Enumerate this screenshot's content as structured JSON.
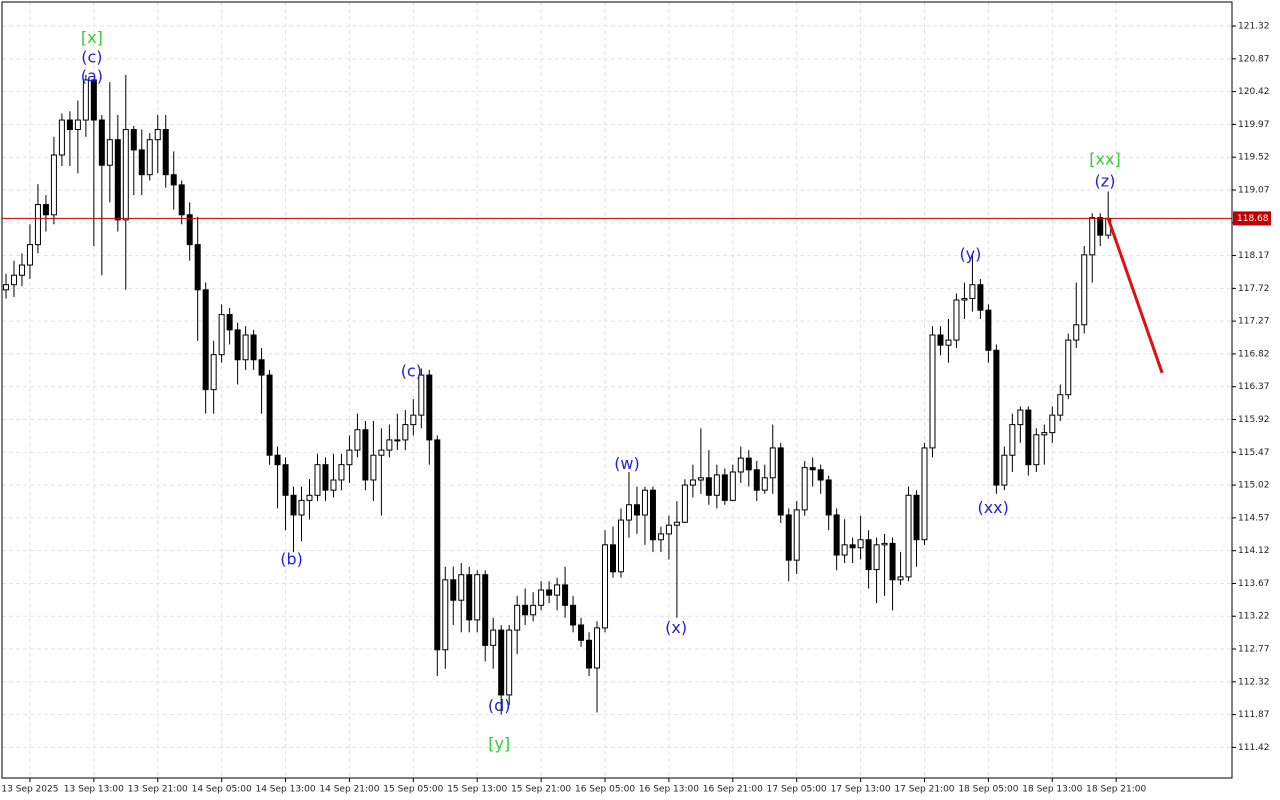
{
  "chart_data": {
    "type": "candlestick",
    "open": [
      117.7,
      117.77,
      117.9,
      118.04,
      118.32,
      118.87,
      118.73,
      119.55,
      120.03,
      119.9,
      120.03,
      120.58,
      120.03,
      119.41,
      119.76,
      118.66,
      119.9,
      119.62,
      119.28,
      119.76,
      119.9,
      119.28,
      119.14,
      118.73,
      118.32,
      117.7,
      116.33,
      116.81,
      117.36,
      117.15,
      116.74,
      117.08,
      116.74,
      116.53,
      115.43,
      115.3,
      114.88,
      114.61,
      114.81,
      114.88,
      115.3,
      114.95,
      115.09,
      115.3,
      115.5,
      115.78,
      115.09,
      115.43,
      115.5,
      115.64,
      115.64,
      115.85,
      115.98,
      116.53,
      115.64,
      112.76,
      113.72,
      113.44,
      113.79,
      113.17,
      113.79,
      112.82,
      113.03,
      112.14,
      113.03,
      113.37,
      113.24,
      113.37,
      113.58,
      113.51,
      113.65,
      113.37,
      113.1,
      112.89,
      112.51,
      113.06,
      114.2,
      113.83,
      114.54,
      114.75,
      114.61,
      114.95,
      114.27,
      114.35,
      114.47,
      114.51,
      115.02,
      115.09,
      115.12,
      114.88,
      115.16,
      114.81,
      115.2,
      115.39,
      115.23,
      114.95,
      115.12,
      115.53,
      114.61,
      113.99,
      114.68,
      115.26,
      115.23,
      115.09,
      114.61,
      114.06,
      114.2,
      114.16,
      114.27,
      113.86,
      114.2,
      114.22,
      113.72,
      113.76,
      114.88,
      114.27,
      115.53,
      117.08,
      116.94,
      117.01,
      117.56,
      117.58,
      117.77,
      117.42,
      116.87,
      115.02,
      115.43,
      115.85,
      116.05,
      115.3,
      115.71,
      115.74,
      115.98,
      116.26,
      117.01,
      117.22,
      118.18,
      118.69,
      118.45
    ],
    "high": [
      117.92,
      118.1,
      118.2,
      118.6,
      119.15,
      119.0,
      119.8,
      120.12,
      120.15,
      120.3,
      120.65,
      120.6,
      120.1,
      120.55,
      120.1,
      120.65,
      119.95,
      119.9,
      119.85,
      120.1,
      120.1,
      119.6,
      119.2,
      118.9,
      118.7,
      117.8,
      117.0,
      117.5,
      117.45,
      117.25,
      117.2,
      117.15,
      116.9,
      116.6,
      115.55,
      115.4,
      115.0,
      115.0,
      115.1,
      115.45,
      115.4,
      115.45,
      115.45,
      115.7,
      116.0,
      115.9,
      115.9,
      115.8,
      115.85,
      116.0,
      116.05,
      116.2,
      116.62,
      116.6,
      115.7,
      113.9,
      113.9,
      113.95,
      113.9,
      113.85,
      113.85,
      113.2,
      113.1,
      113.1,
      113.5,
      113.6,
      113.55,
      113.7,
      113.7,
      113.75,
      113.9,
      113.5,
      113.2,
      113.0,
      113.15,
      114.4,
      114.45,
      114.7,
      115.2,
      115.0,
      115.0,
      115.0,
      114.45,
      114.6,
      114.8,
      115.1,
      115.3,
      115.8,
      115.5,
      115.3,
      115.25,
      115.3,
      115.55,
      115.5,
      115.35,
      115.3,
      115.85,
      115.6,
      114.7,
      114.8,
      115.35,
      115.4,
      115.3,
      115.15,
      114.7,
      114.55,
      114.3,
      114.6,
      114.4,
      114.3,
      114.35,
      114.3,
      114.1,
      115.0,
      114.95,
      115.6,
      117.2,
      117.2,
      117.3,
      117.65,
      117.8,
      118.2,
      117.85,
      117.5,
      116.95,
      115.55,
      116.0,
      116.1,
      116.1,
      115.8,
      115.85,
      116.1,
      116.4,
      117.1,
      117.8,
      118.3,
      118.75,
      118.75,
      119.05
    ],
    "low": [
      117.58,
      117.6,
      117.75,
      117.85,
      118.2,
      118.5,
      118.6,
      119.4,
      119.4,
      119.3,
      119.8,
      118.3,
      117.9,
      118.9,
      118.5,
      117.7,
      119.0,
      119.0,
      119.2,
      119.3,
      119.1,
      118.8,
      118.6,
      118.1,
      117.0,
      116.0,
      116.0,
      116.7,
      116.95,
      116.4,
      116.6,
      116.6,
      116.0,
      115.3,
      114.7,
      114.4,
      114.1,
      114.25,
      114.55,
      114.8,
      114.8,
      114.85,
      114.95,
      115.05,
      115.4,
      114.95,
      114.8,
      114.6,
      115.4,
      115.5,
      115.5,
      115.7,
      115.8,
      115.3,
      112.4,
      112.5,
      113.1,
      113.0,
      113.0,
      113.0,
      112.6,
      112.5,
      111.87,
      112.0,
      112.7,
      113.1,
      113.15,
      113.3,
      113.4,
      113.3,
      113.2,
      113.0,
      112.8,
      112.4,
      111.9,
      113.0,
      113.75,
      113.75,
      114.3,
      114.35,
      114.2,
      114.1,
      114.1,
      114.0,
      113.2,
      114.5,
      114.85,
      114.9,
      114.75,
      114.7,
      114.75,
      114.8,
      115.05,
      115.0,
      114.8,
      114.9,
      114.9,
      114.5,
      113.7,
      113.8,
      114.6,
      115.0,
      114.9,
      114.4,
      113.85,
      113.95,
      113.95,
      114.0,
      113.6,
      113.4,
      113.5,
      113.3,
      113.65,
      113.7,
      113.9,
      114.2,
      115.4,
      116.8,
      116.7,
      116.9,
      117.3,
      117.4,
      117.3,
      116.7,
      114.9,
      114.95,
      115.2,
      115.6,
      115.15,
      115.2,
      115.3,
      115.6,
      115.9,
      116.2,
      116.9,
      117.1,
      117.8,
      118.3,
      118.4
    ],
    "close": [
      117.77,
      117.9,
      118.04,
      118.32,
      118.87,
      118.73,
      119.55,
      120.03,
      119.9,
      120.03,
      120.58,
      120.03,
      119.41,
      119.76,
      118.66,
      119.9,
      119.62,
      119.28,
      119.76,
      119.9,
      119.28,
      119.14,
      118.73,
      118.32,
      117.7,
      116.33,
      116.81,
      117.36,
      117.15,
      116.74,
      117.08,
      116.74,
      116.53,
      115.43,
      115.3,
      114.88,
      114.61,
      114.81,
      114.88,
      115.3,
      114.95,
      115.09,
      115.3,
      115.5,
      115.78,
      115.09,
      115.43,
      115.5,
      115.64,
      115.64,
      115.85,
      115.98,
      116.53,
      115.64,
      112.76,
      113.72,
      113.44,
      113.79,
      113.17,
      113.79,
      112.82,
      113.03,
      112.14,
      113.03,
      113.37,
      113.24,
      113.37,
      113.58,
      113.51,
      113.65,
      113.37,
      113.1,
      112.89,
      112.51,
      113.06,
      114.2,
      113.83,
      114.54,
      114.75,
      114.61,
      114.95,
      114.27,
      114.35,
      114.47,
      114.51,
      115.02,
      115.09,
      115.12,
      114.88,
      115.16,
      114.81,
      115.2,
      115.39,
      115.23,
      114.95,
      115.12,
      115.53,
      114.61,
      113.99,
      114.68,
      115.26,
      115.23,
      115.09,
      114.61,
      114.06,
      114.2,
      114.16,
      114.27,
      113.86,
      114.2,
      114.22,
      113.72,
      113.76,
      114.88,
      114.27,
      115.53,
      117.08,
      116.94,
      117.01,
      117.56,
      117.58,
      117.77,
      117.42,
      116.87,
      115.02,
      115.43,
      115.85,
      116.05,
      115.3,
      115.71,
      115.74,
      115.98,
      116.26,
      117.01,
      117.22,
      118.18,
      118.69,
      118.45,
      118.68
    ],
    "up_color": "#ffffff",
    "down_color": "#000000",
    "xlim": [
      -0.5,
      153.5
    ],
    "xticks": [
      {
        "value": 3,
        "label": "13 Sep 2025"
      },
      {
        "value": 11,
        "label": "13 Sep 13:00"
      },
      {
        "value": 19,
        "label": "13 Sep 21:00"
      },
      {
        "value": 27,
        "label": "14 Sep 05:00"
      },
      {
        "value": 35,
        "label": "14 Sep 13:00"
      },
      {
        "value": 43,
        "label": "14 Sep 21:00"
      },
      {
        "value": 51,
        "label": "15 Sep 05:00"
      },
      {
        "value": 59,
        "label": "15 Sep 13:00"
      },
      {
        "value": 67,
        "label": "15 Sep 21:00"
      },
      {
        "value": 75,
        "label": "16 Sep 05:00"
      },
      {
        "value": 83,
        "label": "16 Sep 13:00"
      },
      {
        "value": 91,
        "label": "16 Sep 21:00"
      },
      {
        "value": 99,
        "label": "17 Sep 05:00"
      },
      {
        "value": 107,
        "label": "17 Sep 13:00"
      },
      {
        "value": 115,
        "label": "17 Sep 21:00"
      },
      {
        "value": 123,
        "label": "18 Sep 05:00"
      },
      {
        "value": 131,
        "label": "18 Sep 13:00"
      },
      {
        "value": 139,
        "label": "18 Sep 21:00"
      }
    ],
    "ylim": [
      111.0,
      121.65
    ],
    "yticks": [
      111.42,
      111.87,
      112.32,
      112.77,
      113.22,
      113.67,
      114.12,
      114.57,
      115.02,
      115.47,
      115.92,
      116.37,
      116.82,
      117.27,
      117.72,
      118.17,
      118.62,
      119.07,
      119.52,
      119.97,
      120.42,
      120.87,
      121.32
    ],
    "grid": true,
    "price_line": {
      "value": 118.68,
      "color": "#c00000"
    },
    "forecast": {
      "x": [
        138,
        144.75
      ],
      "y": [
        118.68,
        116.56
      ],
      "color": "#e01010"
    },
    "annotations": [
      {
        "text": "[x]",
        "x": 10.75,
        "y": 121.15,
        "color": "#33cc33"
      },
      {
        "text": "(c)",
        "x": 10.75,
        "y": 120.88,
        "color": "#2020e0"
      },
      {
        "text": "(a)",
        "x": 10.75,
        "y": 120.62,
        "color": "#2020e0"
      },
      {
        "text": "(b)",
        "x": 35.75,
        "y": 113.99,
        "color": "#2020e0"
      },
      {
        "text": "(c)",
        "x": 50.75,
        "y": 116.57,
        "color": "#2020e0"
      },
      {
        "text": "(d)",
        "x": 61.75,
        "y": 111.98,
        "color": "#2020e0"
      },
      {
        "text": "[y]",
        "x": 61.75,
        "y": 111.46,
        "color": "#33cc33"
      },
      {
        "text": "(w)",
        "x": 77.75,
        "y": 115.3,
        "color": "#2020e0"
      },
      {
        "text": "(x)",
        "x": 83.9,
        "y": 113.05,
        "color": "#2020e0"
      },
      {
        "text": "(y)",
        "x": 120.75,
        "y": 118.18,
        "color": "#2020e0"
      },
      {
        "text": "(xx)",
        "x": 123.6,
        "y": 114.7,
        "color": "#2020e0"
      },
      {
        "text": "[xx]",
        "x": 137.6,
        "y": 119.48,
        "color": "#33cc33"
      },
      {
        "text": "(z)",
        "x": 137.6,
        "y": 119.18,
        "color": "#2020e0"
      }
    ]
  }
}
